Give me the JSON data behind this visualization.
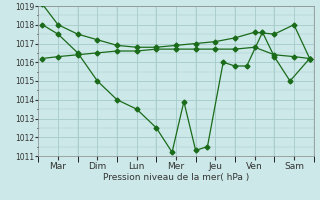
{
  "title": "Pression niveau de la mer( hPa )",
  "bg_color": "#cce8e8",
  "grid_color": "#aacece",
  "line_color": "#1a6b1a",
  "marker_color": "#1a6b1a",
  "days": [
    "Mar",
    "Dim",
    "Lun",
    "Mer",
    "Jeu",
    "Ven",
    "Sam"
  ],
  "day_x": [
    0.5,
    1.5,
    2.5,
    3.5,
    4.5,
    5.5,
    6.5
  ],
  "ylim": [
    1011,
    1019
  ],
  "yticks": [
    1011,
    1012,
    1013,
    1014,
    1015,
    1016,
    1017,
    1018,
    1019
  ],
  "xlim": [
    0,
    7
  ],
  "series1_x": [
    0.1,
    0.5,
    1.0,
    1.5,
    2.0,
    2.5,
    3.0,
    3.5,
    4.0,
    4.5,
    5.0,
    5.5,
    6.0,
    6.5,
    6.9
  ],
  "series1_y": [
    1019.1,
    1018.0,
    1017.5,
    1017.2,
    1016.9,
    1016.8,
    1016.8,
    1016.9,
    1017.0,
    1017.1,
    1017.3,
    1017.6,
    1017.5,
    1018.0,
    1016.2
  ],
  "series2_x": [
    0.1,
    0.5,
    1.0,
    1.5,
    2.0,
    2.5,
    3.0,
    3.4,
    3.7,
    4.0,
    4.3,
    4.7,
    5.0,
    5.3,
    5.7,
    6.0,
    6.4,
    6.9
  ],
  "series2_y": [
    1018.0,
    1017.5,
    1016.5,
    1015.0,
    1014.0,
    1013.5,
    1012.5,
    1011.2,
    1013.9,
    1011.3,
    1011.5,
    1016.0,
    1015.8,
    1015.8,
    1017.6,
    1016.3,
    1015.0,
    1016.2
  ],
  "series3_x": [
    0.1,
    0.5,
    1.0,
    1.5,
    2.0,
    2.5,
    3.0,
    3.5,
    4.0,
    4.5,
    5.0,
    5.5,
    6.0,
    6.5,
    6.9
  ],
  "series3_y": [
    1016.2,
    1016.3,
    1016.4,
    1016.5,
    1016.6,
    1016.6,
    1016.7,
    1016.7,
    1016.7,
    1016.7,
    1016.7,
    1016.8,
    1016.4,
    1016.3,
    1016.2
  ]
}
